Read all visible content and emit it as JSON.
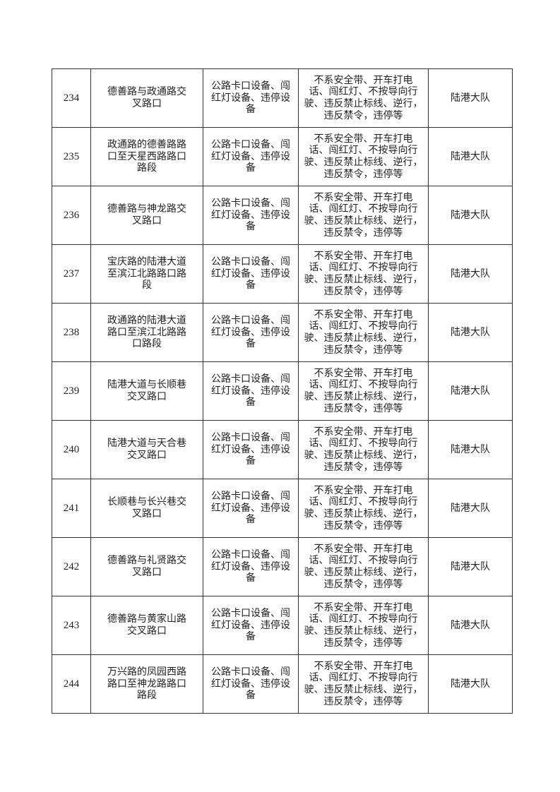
{
  "table": {
    "rows": [
      {
        "no": "234",
        "location": "德善路与政通路交\n叉路口",
        "equipment": "公路卡口设备、闯\n红灯设备、违停设\n备",
        "violations": "不系安全带、开车打电\n话、闯红灯、不按导向行\n驶、违反禁止标线、逆行，\n违反禁令，违停等",
        "unit": "陆港大队"
      },
      {
        "no": "235",
        "location": "政通路的德善路路\n口至天星西路路口\n路段",
        "equipment": "公路卡口设备、闯\n红灯设备、违停设\n备",
        "violations": "不系安全带、开车打电\n话、闯红灯、不按导向行\n驶、违反禁止标线、逆行，\n违反禁令，违停等",
        "unit": "陆港大队"
      },
      {
        "no": "236",
        "location": "德善路与神龙路交\n叉路口",
        "equipment": "公路卡口设备、闯\n红灯设备、违停设\n备",
        "violations": "不系安全带、开车打电\n话、闯红灯、不按导向行\n驶、违反禁止标线、逆行，\n违反禁令，违停等",
        "unit": "陆港大队"
      },
      {
        "no": "237",
        "location": "宝庆路的陆港大道\n至滨江北路路口路\n段",
        "equipment": "公路卡口设备、闯\n红灯设备、违停设\n备",
        "violations": "不系安全带、开车打电\n话、闯红灯、不按导向行\n驶、违反禁止标线、逆行，\n违反禁令，违停等",
        "unit": "陆港大队"
      },
      {
        "no": "238",
        "location": "政通路的陆港大道\n路口至滨江北路路\n口路段",
        "equipment": "公路卡口设备、闯\n红灯设备、违停设\n备",
        "violations": "不系安全带、开车打电\n话、闯红灯、不按导向行\n驶、违反禁止标线、逆行，\n违反禁令，违停等",
        "unit": "陆港大队"
      },
      {
        "no": "239",
        "location": "陆港大道与长顺巷\n交叉路口",
        "equipment": "公路卡口设备、闯\n红灯设备、违停设\n备",
        "violations": "不系安全带、开车打电\n话、闯红灯、不按导向行\n驶、违反禁止标线、逆行，\n违反禁令，违停等",
        "unit": "陆港大队"
      },
      {
        "no": "240",
        "location": "陆港大道与天合巷\n交叉路口",
        "equipment": "公路卡口设备、闯\n红灯设备、违停设\n备",
        "violations": "不系安全带、开车打电\n话、闯红灯、不按导向行\n驶、违反禁止标线、逆行，\n违反禁令，违停等",
        "unit": "陆港大队"
      },
      {
        "no": "241",
        "location": "长顺巷与长兴巷交\n叉路口",
        "equipment": "公路卡口设备、闯\n红灯设备、违停设\n备",
        "violations": "不系安全带、开车打电\n话、闯红灯、不按导向行\n驶、违反禁止标线、逆行，\n违反禁令，违停等",
        "unit": "陆港大队"
      },
      {
        "no": "242",
        "location": "德善路与礼贤路交\n叉路口",
        "equipment": "公路卡口设备、闯\n红灯设备、违停设\n备",
        "violations": "不系安全带、开车打电\n话、闯红灯、不按导向行\n驶、违反禁止标线、逆行，\n违反禁令，违停等",
        "unit": "陆港大队"
      },
      {
        "no": "243",
        "location": "德善路与黄家山路\n交叉路口",
        "equipment": "公路卡口设备、闯\n红灯设备、违停设\n备",
        "violations": "不系安全带、开车打电\n话、闯红灯、不按导向行\n驶、违反禁止标线、逆行，\n违反禁令，违停等",
        "unit": "陆港大队"
      },
      {
        "no": "244",
        "location": "万兴路的凤园西路\n路口至神龙路路口\n路段",
        "equipment": "公路卡口设备、闯\n红灯设备、违停设\n备",
        "violations": "不系安全带、开车打电\n话、闯红灯、不按导向行\n驶、违反禁止标线、逆行，\n违反禁令，违停等",
        "unit": "陆港大队"
      }
    ]
  }
}
